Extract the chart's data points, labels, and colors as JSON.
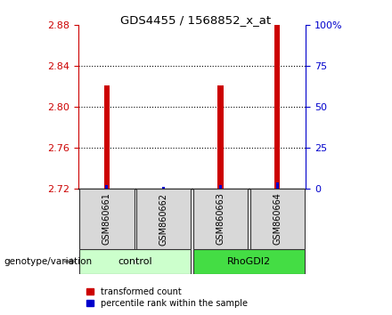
{
  "title": "GDS4455 / 1568852_x_at",
  "samples": [
    "GSM860661",
    "GSM860662",
    "GSM860663",
    "GSM860664"
  ],
  "red_values": [
    2.821,
    2.72,
    2.821,
    2.88
  ],
  "blue_values": [
    2.724,
    2.7225,
    2.724,
    2.726
  ],
  "y_min": 2.72,
  "y_max": 2.88,
  "y_ticks_left": [
    2.72,
    2.76,
    2.8,
    2.84,
    2.88
  ],
  "y_ticks_right": [
    0,
    25,
    50,
    75,
    100
  ],
  "left_color": "#cc0000",
  "right_color": "#0000cc",
  "bar_red_color": "#cc0000",
  "bar_blue_color": "#0000cc",
  "group_light": "#ccffcc",
  "group_dark": "#44dd44",
  "legend_red": "transformed count",
  "legend_blue": "percentile rank within the sample",
  "genotype_label": "genotype/variation"
}
